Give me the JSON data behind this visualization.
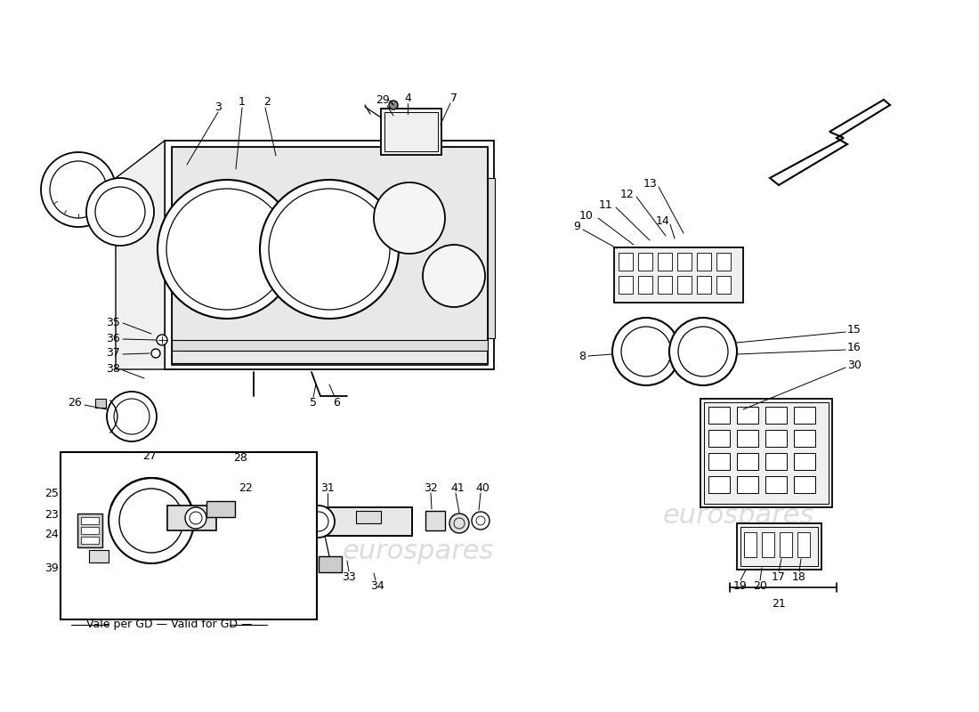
{
  "bg_color": "#ffffff",
  "wm_color": "#bbbbbb",
  "lc": "#000000",
  "figsize": [
    11.0,
    8.0
  ],
  "dpi": 100,
  "bottom_text": "Vale per GD — Valid for GD —"
}
